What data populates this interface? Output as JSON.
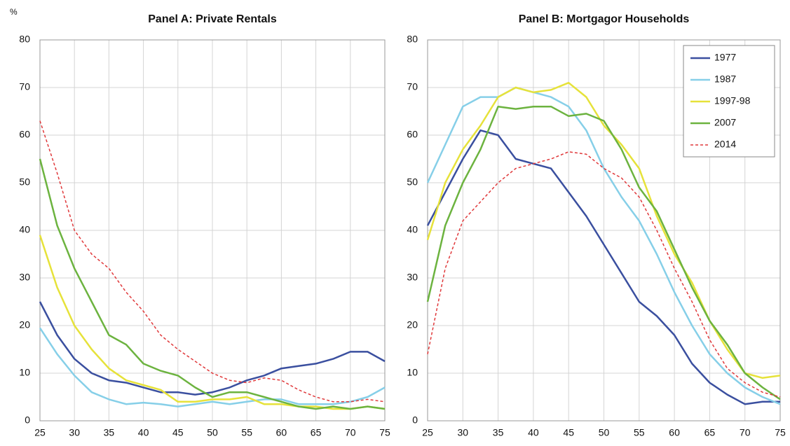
{
  "chart_data": [
    {
      "type": "line",
      "title": "Panel A: Private Rentals",
      "ylabel": "%",
      "x": [
        25,
        27.5,
        30,
        32.5,
        35,
        37.5,
        40,
        42.5,
        45,
        47.5,
        50,
        52.5,
        55,
        57.5,
        60,
        62.5,
        65,
        67.5,
        70,
        72.5,
        75
      ],
      "xlim": [
        25,
        75
      ],
      "xticks": [
        25,
        30,
        35,
        40,
        45,
        50,
        55,
        60,
        65,
        70,
        75
      ],
      "ylim": [
        0,
        80
      ],
      "yticks": [
        0,
        10,
        20,
        30,
        40,
        50,
        60,
        70,
        80
      ],
      "grid": true,
      "series": [
        {
          "color": "#3a4f9f",
          "values": [
            25,
            18,
            13,
            10,
            8.5,
            8,
            7,
            6,
            6,
            5.5,
            6,
            7,
            8.5,
            9.5,
            11,
            11.5,
            12,
            13,
            14.5,
            14.5,
            12.5
          ]
        },
        {
          "color": "#86cfe8",
          "values": [
            19.5,
            14,
            9.5,
            6,
            4.5,
            3.5,
            3.8,
            3.5,
            3,
            3.5,
            4,
            3.5,
            4,
            4.5,
            4.5,
            3.5,
            3.5,
            3.5,
            4,
            5,
            7
          ]
        },
        {
          "color": "#e6e23a",
          "values": [
            39,
            28,
            20,
            15,
            11,
            8.5,
            7.5,
            6.5,
            4,
            4,
            4.5,
            4.5,
            5,
            3.5,
            3.5,
            3,
            3,
            2.5,
            2.5,
            3,
            2.5
          ]
        },
        {
          "color": "#6cb33f",
          "values": [
            55,
            41,
            32,
            25,
            18,
            16,
            12,
            10.5,
            9.5,
            7,
            5,
            6,
            6,
            5,
            4,
            3,
            2.5,
            3,
            2.5,
            3,
            2.5
          ]
        },
        {
          "color": "#e0393b",
          "dashed": true,
          "values": [
            63,
            52,
            40,
            35,
            32,
            27,
            23,
            18,
            15,
            12.5,
            10,
            8.5,
            8,
            9,
            8.5,
            6.5,
            5,
            4,
            4,
            4.5,
            4
          ]
        }
      ]
    },
    {
      "type": "line",
      "title": "Panel B: Mortgagor Households",
      "x": [
        25,
        27.5,
        30,
        32.5,
        35,
        37.5,
        40,
        42.5,
        45,
        47.5,
        50,
        52.5,
        55,
        57.5,
        60,
        62.5,
        65,
        67.5,
        70,
        72.5,
        75
      ],
      "xlim": [
        25,
        75
      ],
      "xticks": [
        25,
        30,
        35,
        40,
        45,
        50,
        55,
        60,
        65,
        70,
        75
      ],
      "ylim": [
        0,
        80
      ],
      "yticks": [
        0,
        10,
        20,
        30,
        40,
        50,
        60,
        70,
        80
      ],
      "grid": true,
      "legend": "top-right",
      "series": [
        {
          "name": "1977",
          "color": "#3a4f9f",
          "values": [
            41,
            48,
            55,
            61,
            60,
            55,
            54,
            53,
            48,
            43,
            37,
            31,
            25,
            22,
            18,
            12,
            8,
            5.5,
            3.5,
            4,
            4
          ]
        },
        {
          "name": "1987",
          "color": "#86cfe8",
          "values": [
            50,
            58,
            66,
            68,
            68,
            70,
            69,
            68,
            66,
            61,
            53,
            47,
            42,
            35,
            27,
            20,
            14,
            10,
            7,
            5,
            3.5
          ]
        },
        {
          "name": "1997-98",
          "color": "#e6e23a",
          "values": [
            38,
            50,
            57,
            62,
            68,
            70,
            69,
            69.5,
            71,
            68,
            62,
            58,
            53,
            43,
            35,
            29,
            21,
            15,
            10,
            9,
            9.5
          ]
        },
        {
          "name": "2007",
          "color": "#6cb33f",
          "values": [
            25,
            41,
            50,
            57,
            66,
            65.5,
            66,
            66,
            64,
            64.5,
            63,
            57,
            49,
            44,
            36,
            28,
            21,
            16,
            10,
            7,
            4.5
          ]
        },
        {
          "name": "2014",
          "color": "#e0393b",
          "dashed": true,
          "values": [
            14,
            32,
            42,
            46,
            50,
            53,
            54,
            55,
            56.5,
            56,
            53,
            51,
            47,
            40,
            32,
            25,
            17,
            11,
            8,
            6,
            5
          ]
        }
      ]
    }
  ]
}
